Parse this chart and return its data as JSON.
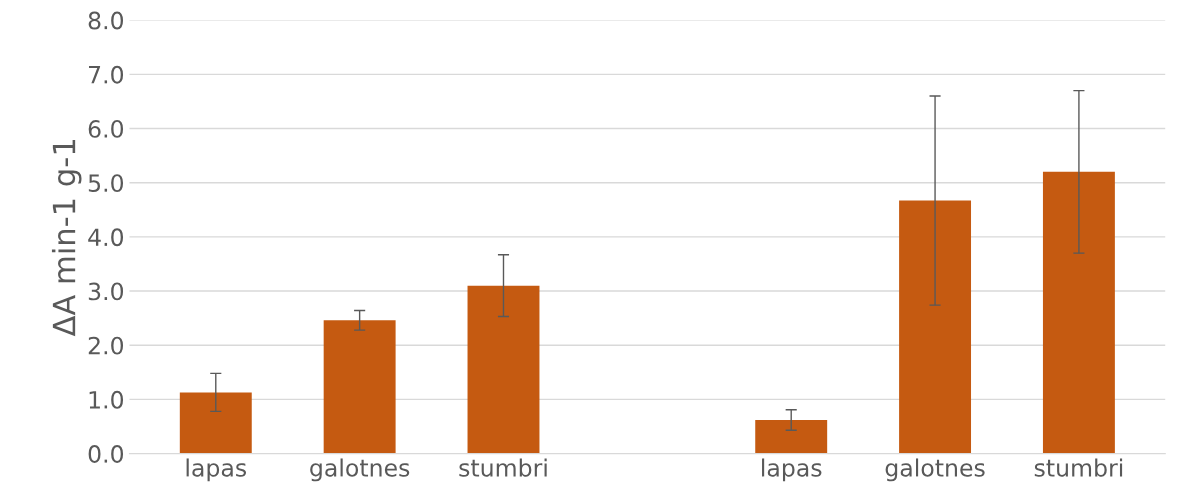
{
  "chart_data": {
    "type": "bar",
    "ylabel": "ΔA min-1 g-1",
    "categories": [
      "lapas",
      "galotnes",
      "stumbri",
      null,
      "lapas",
      "galotnes",
      "stumbri"
    ],
    "values": [
      1.13,
      2.46,
      3.1,
      null,
      0.62,
      4.67,
      5.2
    ],
    "errors": [
      0.35,
      0.18,
      0.57,
      null,
      0.19,
      1.93,
      1.5
    ],
    "color": "#c55a11",
    "ylim": [
      0,
      8
    ],
    "yticks": [
      {
        "value": 0,
        "label": "0.0"
      },
      {
        "value": 1,
        "label": "1.0"
      },
      {
        "value": 2,
        "label": "2.0"
      },
      {
        "value": 3,
        "label": "3.0"
      },
      {
        "value": 4,
        "label": "4.0"
      },
      {
        "value": 5,
        "label": "5.0"
      },
      {
        "value": 6,
        "label": "6.0"
      },
      {
        "value": 7,
        "label": "7.0"
      },
      {
        "value": 8,
        "label": "8.0"
      }
    ],
    "grid": "y"
  }
}
